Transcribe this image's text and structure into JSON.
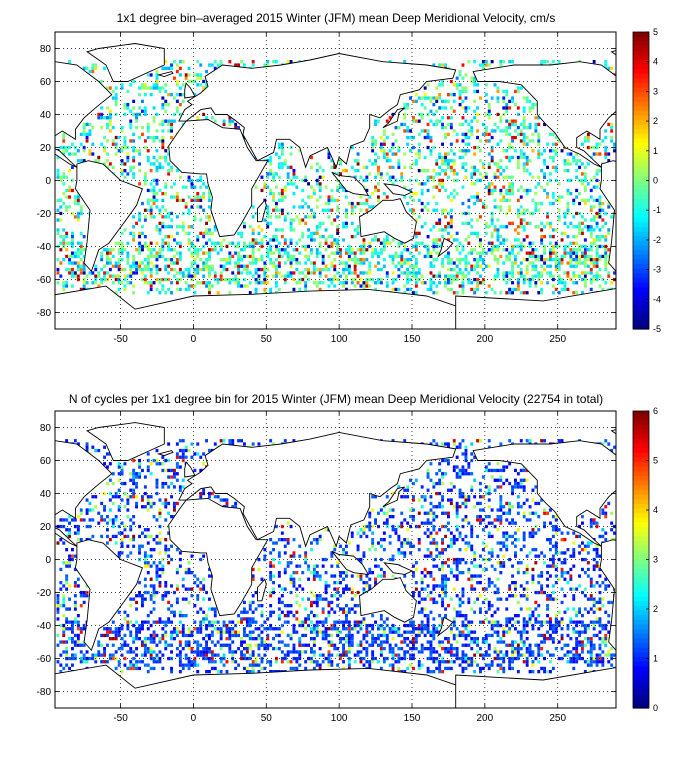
{
  "chart_data": [
    {
      "type": "heatmap",
      "title": "1x1 degree bin–averaged 2015 Winter (JFM) mean Deep Meridional Velocity, cm/s",
      "xlim": [
        -95,
        290
      ],
      "ylim": [
        -90,
        90
      ],
      "xticks": [
        -50,
        0,
        50,
        100,
        150,
        200,
        250
      ],
      "yticks": [
        80,
        60,
        40,
        20,
        0,
        -20,
        -40,
        -60,
        -80
      ],
      "grid": true,
      "colormap": "jet",
      "colorbar": {
        "min": -5,
        "max": 5,
        "ticks": [
          5,
          4,
          3,
          2,
          1,
          0,
          -1,
          -2,
          -3,
          -4,
          -5
        ]
      }
    },
    {
      "type": "heatmap",
      "title": "N of cycles per 1x1 degree bin for 2015 Winter (JFM) mean Deep Meridional Velocity (22754 in total)",
      "xlim": [
        -95,
        290
      ],
      "ylim": [
        -90,
        90
      ],
      "xticks": [
        -50,
        0,
        50,
        100,
        150,
        200,
        250
      ],
      "yticks": [
        80,
        60,
        40,
        20,
        0,
        -20,
        -40,
        -60,
        -80
      ],
      "grid": true,
      "colormap": "jet",
      "colorbar": {
        "min": 0,
        "max": 6,
        "ticks": [
          6,
          5,
          4,
          3,
          2,
          1,
          0
        ]
      }
    }
  ]
}
